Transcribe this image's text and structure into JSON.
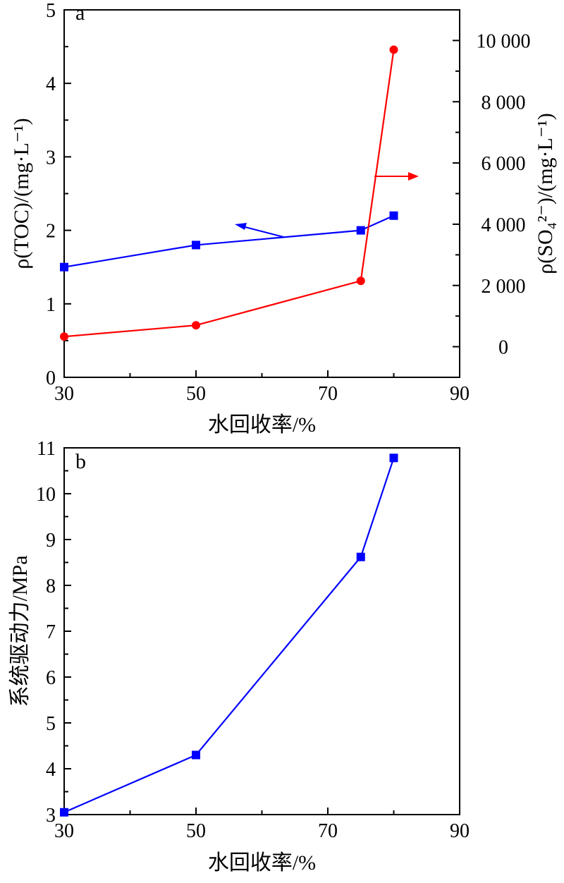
{
  "chart_data": [
    {
      "panel": "a",
      "type": "line",
      "xlabel": "水回收率/%",
      "ylabel_left": "ρ(TOC)/(mg·L⁻¹)",
      "ylabel_right": "ρ(SO₄²⁻)/(mg·L⁻¹)",
      "xlim": [
        30,
        90
      ],
      "ylim_left": [
        0,
        5
      ],
      "ylim_right": [
        -1000,
        11000
      ],
      "x_ticks": [
        30,
        50,
        70,
        90
      ],
      "y_ticks_left": [
        0,
        1,
        2,
        3,
        4,
        5
      ],
      "y_ticks_right": [
        0,
        2000,
        4000,
        6000,
        8000,
        10000
      ],
      "y_tick_labels_right": [
        "0",
        "2 000",
        "4 000",
        "6 000",
        "8 000",
        "10 000"
      ],
      "series": [
        {
          "axis": "left",
          "color": "#0000ff",
          "marker": "square",
          "x": [
            30,
            50,
            75,
            80
          ],
          "y": [
            1.5,
            1.8,
            2.0,
            2.2
          ]
        },
        {
          "axis": "right",
          "color": "#ff0000",
          "marker": "circle",
          "x": [
            30,
            50,
            75,
            80
          ],
          "y": [
            330,
            700,
            2150,
            9700
          ]
        }
      ],
      "annotations": [
        {
          "type": "arrow",
          "color": "#0000ff",
          "direction": "left",
          "points_to": "left axis"
        },
        {
          "type": "arrow",
          "color": "#ff0000",
          "direction": "right",
          "points_to": "right axis"
        }
      ]
    },
    {
      "panel": "b",
      "type": "line",
      "xlabel": "水回收率/%",
      "ylabel": "系统驱动力/MPa",
      "xlim": [
        30,
        90
      ],
      "ylim": [
        3,
        11
      ],
      "x_ticks": [
        30,
        50,
        70,
        90
      ],
      "y_ticks": [
        3,
        4,
        5,
        6,
        7,
        8,
        9,
        10,
        11
      ],
      "series": [
        {
          "color": "#0000ff",
          "marker": "square",
          "x": [
            30,
            50,
            75,
            80
          ],
          "y": [
            3.05,
            4.3,
            8.62,
            10.78
          ]
        }
      ]
    }
  ]
}
